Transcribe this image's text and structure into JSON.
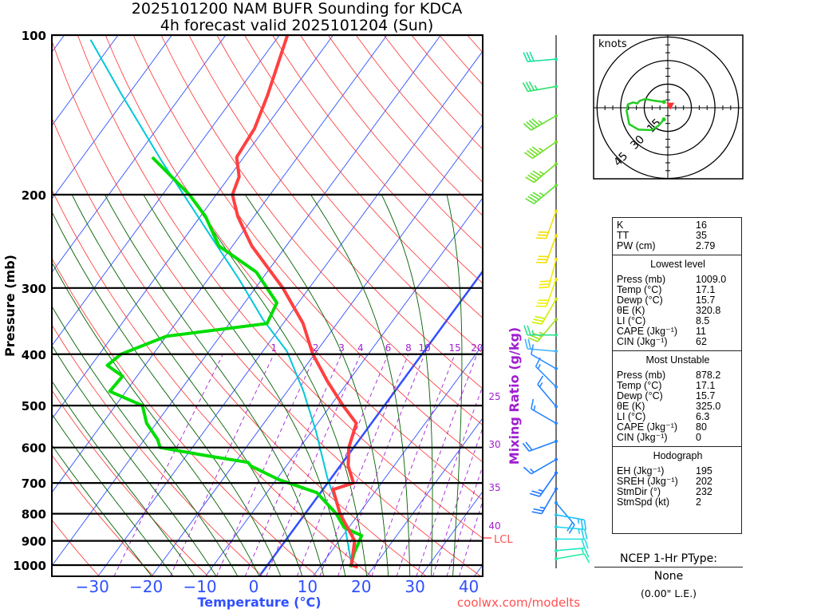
{
  "chart_data": {
    "type": "skew-t",
    "title": "2025101200 NAM BUFR Sounding for KDCA",
    "subtitle": "4h forecast valid 2025101204 (Sun)",
    "xlabel": "Temperature (°C)",
    "ylabel": "Pressure (mb)",
    "y2label": "Mixing Ratio (g/kg)",
    "pressure_ticks": [
      100,
      200,
      300,
      400,
      500,
      600,
      700,
      800,
      900,
      1000
    ],
    "pressure_tick_labels": [
      "100",
      "200",
      "300",
      "400",
      "500",
      "600",
      "700",
      "800",
      "900",
      "1000"
    ],
    "temp_ticks": [
      -30,
      -20,
      -10,
      0,
      10,
      20,
      30,
      40
    ],
    "temp_tick_labels": [
      "−30",
      "−20",
      "−10",
      "0",
      "10",
      "20",
      "30",
      "40"
    ],
    "mixing_ratio_top_labels": [
      "1",
      "2",
      "3",
      "4",
      "6",
      "8",
      "10",
      "15",
      "20"
    ],
    "mixing_ratio_top_values": [
      1,
      2,
      3,
      4,
      6,
      8,
      10,
      15,
      20
    ],
    "mixing_ratio_side_labels": [
      "25",
      "30",
      "35",
      "40"
    ],
    "mixing_ratio_side_values": [
      25,
      30,
      35,
      40
    ],
    "lcl_label": "LCL",
    "lcl_pressure": 880,
    "ylim_mb": [
      1050,
      100
    ],
    "temperature": {
      "color": "#ff4040",
      "p": [
        1009,
        1000,
        900,
        800,
        720,
        700,
        650,
        600,
        540,
        500,
        450,
        400,
        350,
        300,
        250,
        220,
        200,
        185,
        170,
        150,
        130,
        100
      ],
      "t": [
        17.1,
        15.6,
        12.9,
        6.5,
        1.9,
        4.8,
        1.5,
        -0.9,
        -2.8,
        -7.7,
        -13.9,
        -20.3,
        -26.3,
        -34.9,
        -46.4,
        -53,
        -57,
        -58.2,
        -61.3,
        -61.9,
        -64,
        -68.5
      ]
    },
    "dewpoint": {
      "color": "#00dd00",
      "p": [
        1009,
        950,
        880,
        850,
        800,
        730,
        690,
        650,
        640,
        620,
        600,
        580,
        540,
        500,
        470,
        440,
        420,
        400,
        370,
        350,
        320,
        280,
        250,
        220,
        200,
        170
      ],
      "t": [
        15.7,
        14.5,
        13.5,
        9.2,
        5.8,
        -0.7,
        -9.5,
        -16.6,
        -17.6,
        -27,
        -36,
        -37.5,
        -41.8,
        -45,
        -53,
        -52.7,
        -57,
        -56,
        -50,
        -33,
        -34,
        -42,
        -52.5,
        -59,
        -65,
        -77
      ]
    },
    "parcel": {
      "color": "#00c8d8",
      "p": [
        1009,
        847,
        790,
        687,
        558,
        470,
        395,
        344,
        289,
        235,
        172,
        130,
        102
      ],
      "t": [
        16,
        9.2,
        5.9,
        -0.6,
        -9.3,
        -17,
        -25.5,
        -34.3,
        -44.2,
        -56.5,
        -75,
        -91,
        -104.5
      ]
    },
    "winds": [
      {
        "p": 111,
        "dir": 265,
        "spd": 30,
        "color": "#20e0a0"
      },
      {
        "p": 125,
        "dir": 260,
        "spd": 35,
        "color": "#30e070"
      },
      {
        "p": 142,
        "dir": 240,
        "spd": 45,
        "color": "#60e030"
      },
      {
        "p": 159,
        "dir": 235,
        "spd": 45,
        "color": "#70e020"
      },
      {
        "p": 175,
        "dir": 230,
        "spd": 45,
        "color": "#70e020"
      },
      {
        "p": 192,
        "dir": 230,
        "spd": 45,
        "color": "#60e030"
      },
      {
        "p": 215,
        "dir": 200,
        "spd": 30,
        "color": "#f0e000"
      },
      {
        "p": 239,
        "dir": 200,
        "spd": 30,
        "color": "#f0e000"
      },
      {
        "p": 265,
        "dir": 195,
        "spd": 30,
        "color": "#f8e800"
      },
      {
        "p": 289,
        "dir": 200,
        "spd": 30,
        "color": "#f0f000"
      },
      {
        "p": 315,
        "dir": 210,
        "spd": 30,
        "color": "#d0f000"
      },
      {
        "p": 344,
        "dir": 220,
        "spd": 35,
        "color": "#a0e020"
      },
      {
        "p": 368,
        "dir": 270,
        "spd": 25,
        "color": "#30e090"
      },
      {
        "p": 395,
        "dir": 275,
        "spd": 20,
        "color": "#40b0ff"
      },
      {
        "p": 426,
        "dir": 300,
        "spd": 10,
        "color": "#3090ff"
      },
      {
        "p": 461,
        "dir": 315,
        "spd": 15,
        "color": "#3090ff"
      },
      {
        "p": 502,
        "dir": 320,
        "spd": 15,
        "color": "#2c88ff"
      },
      {
        "p": 540,
        "dir": 300,
        "spd": 15,
        "color": "#2c88ff"
      },
      {
        "p": 584,
        "dir": 250,
        "spd": 20,
        "color": "#2080ff"
      },
      {
        "p": 632,
        "dir": 240,
        "spd": 15,
        "color": "#2080ff"
      },
      {
        "p": 670,
        "dir": 215,
        "spd": 25,
        "color": "#2078ff"
      },
      {
        "p": 718,
        "dir": 210,
        "spd": 25,
        "color": "#2078ff"
      },
      {
        "p": 763,
        "dir": 140,
        "spd": 20,
        "color": "#2090ff"
      },
      {
        "p": 804,
        "dir": 100,
        "spd": 25,
        "color": "#20c0ff"
      },
      {
        "p": 847,
        "dir": 95,
        "spd": 25,
        "color": "#20d0f0"
      },
      {
        "p": 893,
        "dir": 90,
        "spd": 20,
        "color": "#20e0e0"
      },
      {
        "p": 939,
        "dir": 85,
        "spd": 15,
        "color": "#20e8c0"
      },
      {
        "p": 973,
        "dir": 80,
        "spd": 10,
        "color": "#20f0a0"
      }
    ],
    "hodograph": {
      "units_label": "knots",
      "ring_labels": [
        "15",
        "30",
        "45"
      ],
      "rings_kt": [
        15,
        30,
        45
      ],
      "u": [
        -2.4,
        -8.5,
        -14.4,
        -17.8,
        -19.5,
        -22,
        -25.4,
        -26.2,
        -24.5,
        -18.6,
        -10.2,
        -5.9,
        -2.5
      ],
      "v": [
        3.7,
        4.4,
        5.6,
        4.4,
        2.7,
        3.4,
        2.2,
        -2,
        -10.5,
        -13.9,
        -14.2,
        -11.3,
        -7.4
      ],
      "storm_dir": 232,
      "storm_spd": 2
    }
  },
  "stats": {
    "indices": [
      {
        "label": "K",
        "value": "16"
      },
      {
        "label": "TT",
        "value": "35"
      },
      {
        "label": "PW (cm)",
        "value": "2.79"
      }
    ],
    "lowest": {
      "title": "Lowest level",
      "rows": [
        {
          "label": "Press (mb)",
          "value": "1009.0"
        },
        {
          "label": "Temp (°C)",
          "value": "17.1"
        },
        {
          "label": "Dewp (°C)",
          "value": "15.7"
        },
        {
          "label": "θE (K)",
          "value": "320.8"
        },
        {
          "label": "LI (°C)",
          "value": "8.5"
        },
        {
          "label": "CAPE (Jkg⁻¹)",
          "value": "11"
        },
        {
          "label": "CIN (Jkg⁻¹)",
          "value": "62"
        }
      ]
    },
    "unstable": {
      "title": "Most Unstable",
      "rows": [
        {
          "label": "Press (mb)",
          "value": "878.2"
        },
        {
          "label": "Temp (°C)",
          "value": "17.1"
        },
        {
          "label": "Dewp (°C)",
          "value": "15.7"
        },
        {
          "label": "θE (K)",
          "value": "325.0"
        },
        {
          "label": "LI (°C)",
          "value": "6.3"
        },
        {
          "label": "CAPE (Jkg⁻¹)",
          "value": "80"
        },
        {
          "label": "CIN (Jkg⁻¹)",
          "value": "0"
        }
      ]
    },
    "hodograph": {
      "title": "Hodograph",
      "rows": [
        {
          "label": "EH (Jkg⁻¹)",
          "value": "195"
        },
        {
          "label": "SREH (Jkg⁻¹)",
          "value": "202"
        },
        {
          "label": "StmDir (°)",
          "value": "232"
        },
        {
          "label": "StmSpd (kt)",
          "value": "2"
        }
      ]
    }
  },
  "ptype": {
    "header": "NCEP 1-Hr PType:",
    "value": "None",
    "liquid_equiv": "(0.00\" L.E.)"
  },
  "credit": "coolwx.com/modelts",
  "colors": {
    "isotherm": "#3050ff",
    "dry_adiabat": "#ff3030",
    "moist_adiabat": "#006000",
    "mixing_ratio": "#a020d0",
    "axis_label": "#3050ff"
  }
}
